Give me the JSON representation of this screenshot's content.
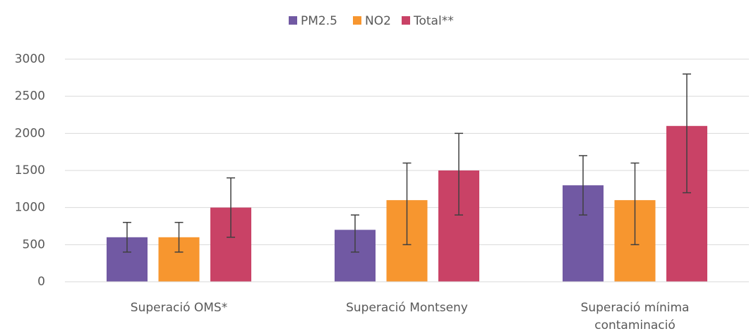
{
  "chart_data": {
    "type": "bar",
    "categories": [
      "Superació OMS*",
      "Superació Montseny",
      "Superació mínima contaminació"
    ],
    "series": [
      {
        "name": "PM2.5",
        "color": "#7159a3",
        "values": [
          600,
          700,
          1300
        ],
        "error_minus": [
          200,
          300,
          400
        ],
        "error_plus": [
          200,
          200,
          400
        ]
      },
      {
        "name": "NO2",
        "color": "#f7962f",
        "values": [
          600,
          1100,
          1100
        ],
        "error_minus": [
          200,
          600,
          600
        ],
        "error_plus": [
          200,
          500,
          500
        ]
      },
      {
        "name": "Total**",
        "color": "#c94266",
        "values": [
          1000,
          1500,
          2100
        ],
        "error_minus": [
          400,
          600,
          900
        ],
        "error_plus": [
          400,
          500,
          700
        ]
      }
    ],
    "ylim": [
      0,
      3000
    ],
    "yticks": [
      0,
      500,
      1000,
      1500,
      2000,
      2500,
      3000
    ],
    "grid": true,
    "legend": "top"
  }
}
